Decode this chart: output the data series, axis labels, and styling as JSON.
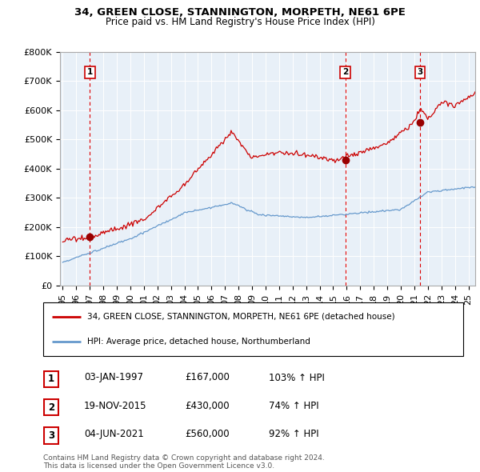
{
  "title_line1": "34, GREEN CLOSE, STANNINGTON, MORPETH, NE61 6PE",
  "title_line2": "Price paid vs. HM Land Registry's House Price Index (HPI)",
  "ylabel_ticks": [
    "£0",
    "£100K",
    "£200K",
    "£300K",
    "£400K",
    "£500K",
    "£600K",
    "£700K",
    "£800K"
  ],
  "ytick_values": [
    0,
    100000,
    200000,
    300000,
    400000,
    500000,
    600000,
    700000,
    800000
  ],
  "ylim": [
    0,
    800000
  ],
  "xlim_start": 1994.8,
  "xlim_end": 2025.5,
  "purchase_dates": [
    1997.01,
    2015.89,
    2021.42
  ],
  "purchase_prices": [
    167000,
    430000,
    560000
  ],
  "purchase_labels": [
    "1",
    "2",
    "3"
  ],
  "purchase_date_strs": [
    "03-JAN-1997",
    "19-NOV-2015",
    "04-JUN-2021"
  ],
  "purchase_price_strs": [
    "£167,000",
    "£430,000",
    "£560,000"
  ],
  "purchase_hpi_strs": [
    "103% ↑ HPI",
    "74% ↑ HPI",
    "92% ↑ HPI"
  ],
  "red_line_color": "#cc0000",
  "blue_line_color": "#6699cc",
  "dashed_line_color": "#dd0000",
  "dot_color": "#990000",
  "background_color": "#e8f0f8",
  "legend_label_red": "34, GREEN CLOSE, STANNINGTON, MORPETH, NE61 6PE (detached house)",
  "legend_label_blue": "HPI: Average price, detached house, Northumberland",
  "footnote": "Contains HM Land Registry data © Crown copyright and database right 2024.\nThis data is licensed under the Open Government Licence v3.0.",
  "xtick_years": [
    1995,
    1996,
    1997,
    1998,
    1999,
    2000,
    2001,
    2002,
    2003,
    2004,
    2005,
    2006,
    2007,
    2008,
    2009,
    2010,
    2011,
    2012,
    2013,
    2014,
    2015,
    2016,
    2017,
    2018,
    2019,
    2020,
    2021,
    2022,
    2023,
    2024,
    2025
  ]
}
